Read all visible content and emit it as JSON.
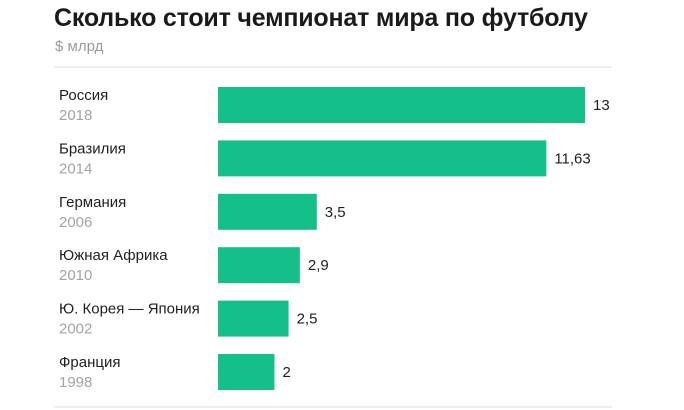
{
  "title": "Сколько стоит чемпионат мира по футболу",
  "subtitle": "$ млрд",
  "colors": {
    "bar": "#15bf8a",
    "divider": "#dcdcdc"
  },
  "chart_data": {
    "type": "bar",
    "orientation": "horizontal",
    "title": "Сколько стоит чемпионат мира по футболу",
    "subtitle": "$ млрд",
    "categories": [
      {
        "country": "Россия",
        "year": "2018"
      },
      {
        "country": "Бразилия",
        "year": "2014"
      },
      {
        "country": "Германия",
        "year": "2006"
      },
      {
        "country": "Южная Африка",
        "year": "2010"
      },
      {
        "country": "Ю. Корея — Япония",
        "year": "2002"
      },
      {
        "country": "Франция",
        "year": "1998"
      }
    ],
    "values": [
      13,
      11.63,
      3.5,
      2.9,
      2.5,
      2
    ],
    "value_labels": [
      "13",
      "11,63",
      "3,5",
      "2,9",
      "2,5",
      "2"
    ],
    "xlim": [
      0,
      13
    ],
    "grid": false,
    "legend": "none"
  }
}
